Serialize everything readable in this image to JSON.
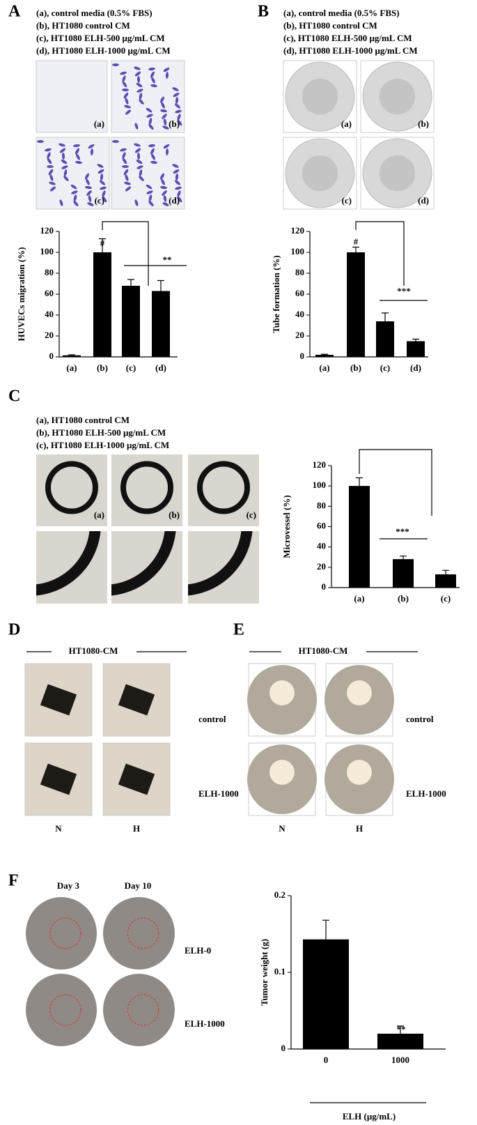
{
  "panels": {
    "A": {
      "letter": "A",
      "legend": [
        "(a), control media (0.5% FBS)",
        "(b), HT1080 control CM",
        "(c), HT1080 ELH-500 μg/mL CM",
        "(d), HT1080 ELH-1000 μg/mL CM"
      ],
      "image_labels": [
        "(a)",
        "(b)",
        "(c)",
        "(d)"
      ]
    },
    "B": {
      "letter": "B",
      "legend": [
        "(a), control media (0.5% FBS)",
        "(b), HT1080 control CM",
        "(c), HT1080 ELH-500 μg/mL CM",
        "(d), HT1080 ELH-1000 μg/mL CM"
      ],
      "image_labels": [
        "(a)",
        "(b)",
        "(c)",
        "(d)"
      ]
    },
    "C": {
      "letter": "C",
      "legend": [
        "(a), HT1080 control CM",
        "(b), HT1080 ELH-500 μg/mL CM",
        "(c), HT1080 ELH-1000 μg/mL CM"
      ],
      "image_labels": [
        "(a)",
        "(b)",
        "(c)"
      ]
    },
    "D": {
      "letter": "D",
      "header": "HT1080-CM",
      "row_labels": [
        "control",
        "ELH-1000"
      ],
      "column_labels": [
        "N",
        "H"
      ]
    },
    "E": {
      "letter": "E",
      "header": "HT1080-CM",
      "row_labels": [
        "control",
        "ELH-1000"
      ],
      "column_labels": [
        "N",
        "H"
      ]
    },
    "F": {
      "letter": "F",
      "column_labels": [
        "Day 3",
        "Day 10"
      ],
      "row_labels": [
        "ELH-0",
        "ELH-1000"
      ]
    }
  },
  "chart_data": [
    {
      "type": "bar",
      "y_label": "HUVECs migration (%)",
      "categories": [
        "(a)",
        "(b)",
        "(c)",
        "(d)"
      ],
      "values": [
        1.5,
        100,
        68,
        63
      ],
      "errors": [
        0.5,
        13,
        6,
        10
      ],
      "color": "#000000",
      "ylim": [
        0,
        120
      ],
      "yticks": [
        0,
        20,
        40,
        60,
        80,
        100,
        120
      ],
      "annotations": [
        "#",
        "**"
      ]
    },
    {
      "type": "bar",
      "y_label": "Tube formation (%)",
      "categories": [
        "(a)",
        "(b)",
        "(c)",
        "(d)"
      ],
      "values": [
        2,
        100,
        34,
        15
      ],
      "errors": [
        0.5,
        5,
        8,
        2
      ],
      "color": "#000000",
      "ylim": [
        0,
        120
      ],
      "yticks": [
        0,
        20,
        40,
        60,
        80,
        100,
        120
      ],
      "annotations": [
        "#",
        "***"
      ]
    },
    {
      "type": "bar",
      "y_label": "Microvessel (%)",
      "categories": [
        "(a)",
        "(b)",
        "(c)"
      ],
      "values": [
        100,
        28,
        13
      ],
      "errors": [
        8,
        3,
        4
      ],
      "color": "#000000",
      "ylim": [
        0,
        120
      ],
      "yticks": [
        0,
        20,
        40,
        60,
        80,
        100,
        120
      ],
      "annotations": [
        "***"
      ]
    },
    {
      "type": "bar",
      "y_label": "Tumor weight (g)",
      "x_label": "ELH (μg/mL)",
      "categories": [
        "0",
        "1000"
      ],
      "values": [
        0.143,
        0.02
      ],
      "errors": [
        0.025,
        0.01
      ],
      "color": "#000000",
      "ylim": [
        0,
        0.2
      ],
      "yticks": [
        0,
        0.1,
        0.2
      ],
      "annotations": [
        "**"
      ]
    }
  ]
}
